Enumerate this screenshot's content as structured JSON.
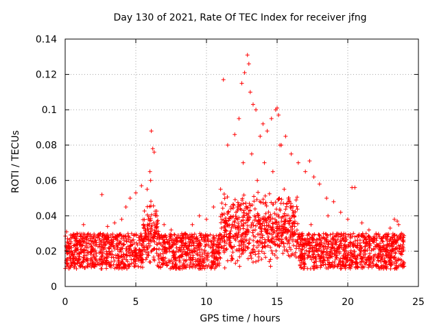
{
  "chart_data": {
    "type": "scatter",
    "title": "Day 130 of 2021, Rate Of TEC Index for receiver jfng",
    "xlabel": "GPS time / hours",
    "ylabel": "ROTI / TECUs",
    "xlim": [
      0,
      25
    ],
    "ylim": [
      0,
      0.14
    ],
    "xticks": [
      0,
      5,
      10,
      15,
      20,
      25
    ],
    "xtick_labels": [
      "0",
      "5",
      "10",
      "15",
      "20",
      "25"
    ],
    "yticks": [
      0,
      0.02,
      0.04,
      0.06,
      0.08,
      0.1,
      0.12,
      0.14
    ],
    "ytick_labels": [
      "0",
      "0.02",
      "0.04",
      "0.06",
      "0.08",
      "0.1",
      "0.12",
      "0.14"
    ],
    "grid": true,
    "marker": "+",
    "marker_color": "#ff0000",
    "series": [
      {
        "name": "ROTI",
        "x": [
          0.1,
          0.2,
          0.5,
          1.0,
          1.3,
          2.0,
          2.5,
          3.0,
          3.5,
          4.0,
          4.3,
          4.6,
          5.0,
          5.4,
          5.8,
          6.0,
          6.1,
          6.2,
          6.3,
          6.5,
          7.0,
          7.5,
          8.0,
          8.5,
          9.0,
          9.5,
          10.0,
          10.5,
          11.0,
          11.2,
          11.5,
          12.0,
          12.3,
          12.5,
          12.7,
          12.9,
          13.0,
          13.1,
          13.3,
          13.5,
          13.8,
          14.0,
          14.3,
          14.6,
          14.9,
          15.0,
          15.1,
          15.3,
          15.6,
          16.0,
          16.5,
          17.0,
          17.3,
          17.6,
          18.0,
          18.5,
          19.0,
          19.5,
          20.0,
          20.3,
          20.5,
          21.0,
          21.5,
          22.0,
          22.5,
          23.0,
          23.5,
          23.8,
          0.15,
          1.5,
          2.6,
          3.3,
          4.8,
          5.2,
          5.6,
          6.05,
          6.4,
          7.2,
          9.8,
          10.9,
          11.7,
          12.1,
          12.6,
          13.2,
          13.6,
          14.1,
          14.7,
          15.2,
          15.5,
          15.8,
          16.8,
          17.4,
          18.6,
          19.2,
          20.2,
          20.4,
          21.2,
          23.3,
          23.6
        ],
        "y": [
          0.031,
          0.022,
          0.018,
          0.025,
          0.035,
          0.028,
          0.03,
          0.034,
          0.036,
          0.038,
          0.045,
          0.05,
          0.053,
          0.057,
          0.055,
          0.065,
          0.088,
          0.078,
          0.076,
          0.04,
          0.035,
          0.032,
          0.028,
          0.03,
          0.035,
          0.04,
          0.038,
          0.045,
          0.055,
          0.117,
          0.08,
          0.086,
          0.095,
          0.115,
          0.121,
          0.131,
          0.126,
          0.11,
          0.103,
          0.1,
          0.085,
          0.092,
          0.088,
          0.095,
          0.1,
          0.101,
          0.097,
          0.08,
          0.085,
          0.075,
          0.07,
          0.065,
          0.071,
          0.062,
          0.058,
          0.05,
          0.048,
          0.042,
          0.038,
          0.056,
          0.056,
          0.036,
          0.032,
          0.03,
          0.028,
          0.033,
          0.037,
          0.03,
          0.013,
          0.015,
          0.052,
          0.02,
          0.018,
          0.016,
          0.022,
          0.06,
          0.04,
          0.02,
          0.015,
          0.012,
          0.025,
          0.03,
          0.07,
          0.075,
          0.06,
          0.07,
          0.065,
          0.08,
          0.055,
          0.05,
          0.03,
          0.035,
          0.04,
          0.025,
          0.015,
          0.03,
          0.02,
          0.038,
          0.035
        ],
        "dense_band": {
          "x": [
            0,
            24
          ],
          "y": [
            0.01,
            0.03
          ]
        }
      }
    ]
  }
}
